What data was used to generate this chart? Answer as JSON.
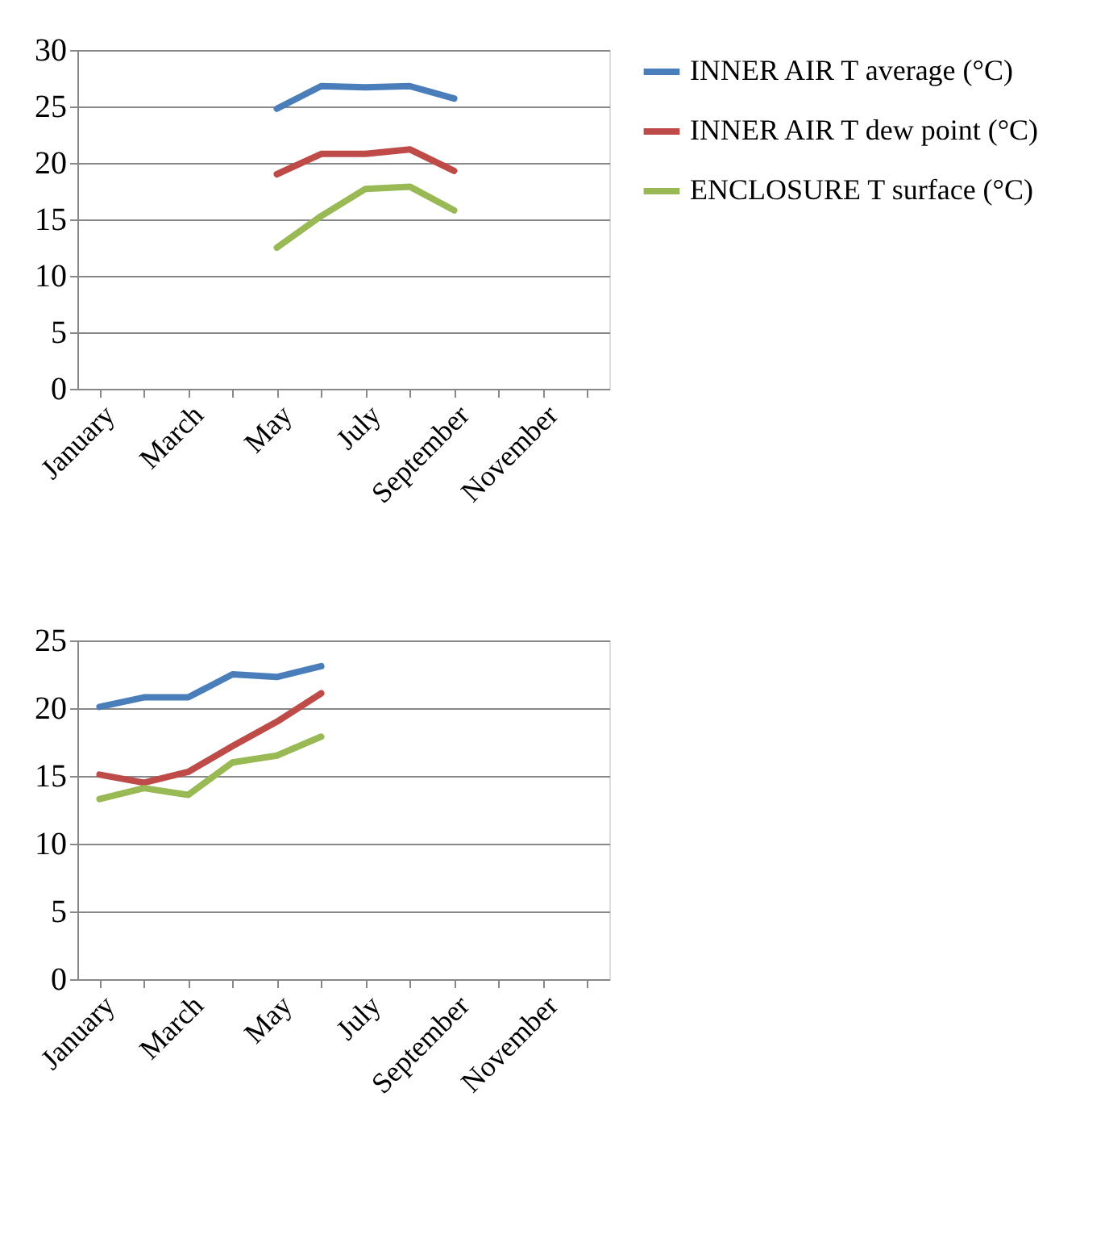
{
  "chart_data": [
    {
      "type": "line",
      "categories": [
        "January",
        null,
        "March",
        null,
        "May",
        null,
        "July",
        null,
        "September",
        null,
        "November",
        null
      ],
      "ylim": [
        0,
        30
      ],
      "yticks": [
        0,
        5,
        10,
        15,
        20,
        25,
        30
      ],
      "grid": "y",
      "legend": "right",
      "marker": "none",
      "line_style": "solid",
      "series": [
        {
          "name": "INNER AIR T average (°C)",
          "color": "#4a7ebb",
          "values": [
            null,
            null,
            null,
            null,
            24.8,
            26.8,
            26.7,
            26.8,
            25.7,
            null,
            null,
            null
          ]
        },
        {
          "name": "INNER AIR T dew point (°C)",
          "color": "#be4b48",
          "values": [
            null,
            null,
            null,
            null,
            19.0,
            20.8,
            20.8,
            21.2,
            19.3,
            null,
            null,
            null
          ]
        },
        {
          "name": "ENCLOSURE T surface (°C)",
          "color": "#98b954",
          "values": [
            null,
            null,
            null,
            null,
            12.5,
            15.3,
            17.7,
            17.9,
            15.8,
            null,
            null,
            null
          ]
        }
      ]
    },
    {
      "type": "line",
      "categories": [
        "January",
        null,
        "March",
        null,
        "May",
        null,
        "July",
        null,
        "September",
        null,
        "November",
        null
      ],
      "ylim": [
        0,
        25
      ],
      "yticks": [
        0,
        5,
        10,
        15,
        20,
        25
      ],
      "grid": "y",
      "legend": "right",
      "marker": "none",
      "line_style": "solid",
      "series": [
        {
          "name": "INNER AIR T average (°C)",
          "color": "#4a7ebb",
          "values": [
            20.1,
            20.8,
            20.8,
            22.5,
            22.3,
            23.1,
            null,
            null,
            null,
            null,
            null,
            null
          ]
        },
        {
          "name": "INNER AIR T dew point (°C)",
          "color": "#be4b48",
          "values": [
            15.1,
            14.5,
            15.3,
            17.2,
            19.0,
            21.1,
            null,
            null,
            null,
            null,
            null,
            null
          ]
        },
        {
          "name": "ENCLOSURE T surface (°C)",
          "color": "#98b954",
          "values": [
            13.3,
            14.1,
            13.6,
            16.0,
            16.5,
            17.9,
            null,
            null,
            null,
            null,
            null,
            null
          ]
        }
      ]
    }
  ]
}
